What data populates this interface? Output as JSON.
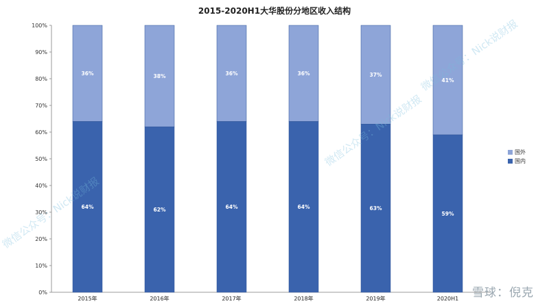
{
  "chart_data": {
    "type": "bar",
    "stacked": true,
    "title": "2015-2020H1大华股份分地区收入结构",
    "categories": [
      "2015年",
      "2016年",
      "2017年",
      "2018年",
      "2019年",
      "2020H1"
    ],
    "series": [
      {
        "name": "国内",
        "values": [
          64,
          62,
          64,
          64,
          63,
          59
        ],
        "labels": [
          "64%",
          "62%",
          "64%",
          "64%",
          "63%",
          "59%"
        ]
      },
      {
        "name": "国外",
        "values": [
          36,
          38,
          36,
          36,
          37,
          41
        ],
        "labels": [
          "36%",
          "38%",
          "36%",
          "36%",
          "37%",
          "41%"
        ]
      }
    ],
    "ylim": [
      0,
      100
    ],
    "yticks": [
      "0%",
      "10%",
      "20%",
      "30%",
      "40%",
      "50%",
      "60%",
      "70%",
      "80%",
      "90%",
      "100%"
    ],
    "legend_position": "right",
    "colors": {
      "国内": "#3a63ad",
      "国外": "#8ea5d8"
    }
  },
  "watermarks": {
    "account": "微信公众号：Nick说财报",
    "brand": "雪球：倪克"
  }
}
